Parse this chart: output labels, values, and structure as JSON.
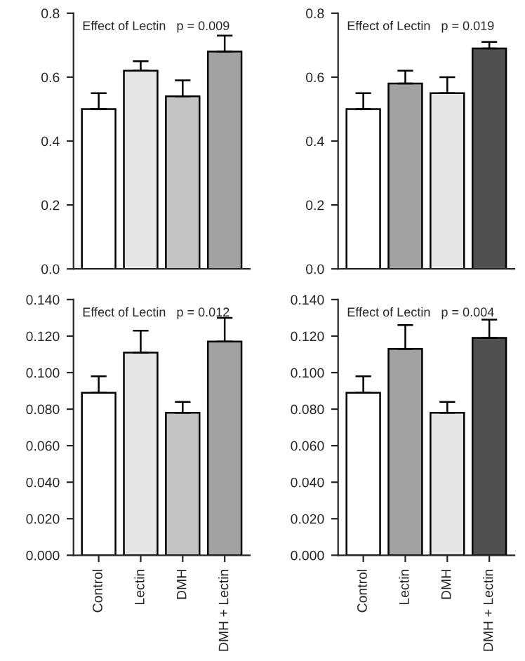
{
  "chart_data": [
    {
      "type": "bar",
      "categories": [
        null,
        null,
        null,
        null
      ],
      "values": [
        0.5,
        0.62,
        0.54,
        0.68
      ],
      "errors": [
        [
          0.5,
          0.55
        ],
        [
          0.62,
          0.65
        ],
        [
          0.54,
          0.59
        ],
        [
          0.68,
          0.73
        ]
      ],
      "colors": [
        "#ffffff",
        "#e6e6e6",
        "#c4c4c4",
        "#a2a2a2"
      ],
      "ylim": [
        0,
        0.8
      ],
      "yticks": [
        {
          "value": 0,
          "label": "0.0"
        },
        0.2,
        0.4,
        0.6,
        0.8
      ],
      "annotations": [
        "Effect of Lectin   p = 0.009"
      ],
      "tick_labels": "y",
      "grid": false,
      "legend": false
    },
    {
      "type": "bar",
      "categories": [
        null,
        null,
        null,
        null
      ],
      "values": [
        0.5,
        0.58,
        0.55,
        0.69
      ],
      "errors": [
        [
          0.5,
          0.55
        ],
        [
          0.58,
          0.62
        ],
        [
          0.55,
          0.6
        ],
        [
          0.69,
          0.71
        ]
      ],
      "colors": [
        "#ffffff",
        "#a2a2a2",
        "#e6e6e6",
        "#505050"
      ],
      "ylim": [
        0,
        0.8
      ],
      "yticks": [
        {
          "value": 0,
          "label": "0.0"
        },
        0.2,
        0.4,
        0.6,
        0.8
      ],
      "annotations": [
        "Effect of Lectin   p = 0.019"
      ],
      "tick_labels": "y",
      "grid": false,
      "legend": false
    },
    {
      "type": "bar",
      "categories": [
        "Control",
        "Lectin",
        "DMH",
        "DMH + Lectin"
      ],
      "values": [
        0.089,
        0.111,
        0.078,
        0.117
      ],
      "errors": [
        [
          0.089,
          0.098
        ],
        [
          0.111,
          0.123
        ],
        [
          0.078,
          0.084
        ],
        [
          0.117,
          0.13
        ]
      ],
      "colors": [
        "#ffffff",
        "#e6e6e6",
        "#c4c4c4",
        "#a2a2a2"
      ],
      "ylim": [
        0,
        0.14
      ],
      "yticks": [
        {
          "value": 0,
          "label": "0.000"
        },
        {
          "value": 0.02,
          "label": "0.020"
        },
        {
          "value": 0.04,
          "label": "0.040"
        },
        {
          "value": 0.06,
          "label": "0.060"
        },
        {
          "value": 0.08,
          "label": "0.080"
        },
        {
          "value": 0.1,
          "label": "0.100"
        },
        {
          "value": 0.12,
          "label": "0.120"
        },
        {
          "value": 0.14,
          "label": "0.140"
        }
      ],
      "annotations": [
        "Effect of Lectin   p = 0.012"
      ],
      "grid": false,
      "legend": false
    },
    {
      "type": "bar",
      "categories": [
        "Control",
        "Lectin",
        "DMH",
        "DMH + Lectin"
      ],
      "values": [
        0.089,
        0.113,
        0.078,
        0.119
      ],
      "errors": [
        [
          0.089,
          0.098
        ],
        [
          0.113,
          0.126
        ],
        [
          0.078,
          0.084
        ],
        [
          0.119,
          0.129
        ]
      ],
      "colors": [
        "#ffffff",
        "#a2a2a2",
        "#e6e6e6",
        "#505050"
      ],
      "ylim": [
        0,
        0.14
      ],
      "yticks": [
        {
          "value": 0,
          "label": "0.000"
        },
        {
          "value": 0.02,
          "label": "0.020"
        },
        {
          "value": 0.04,
          "label": "0.040"
        },
        {
          "value": 0.06,
          "label": "0.060"
        },
        {
          "value": 0.08,
          "label": "0.080"
        },
        {
          "value": 0.1,
          "label": "0.100"
        },
        {
          "value": 0.12,
          "label": "0.120"
        },
        {
          "value": 0.14,
          "label": "0.140"
        }
      ],
      "annotations": [
        "Effect of Lectin   p = 0.004"
      ],
      "grid": false,
      "legend": false
    }
  ]
}
